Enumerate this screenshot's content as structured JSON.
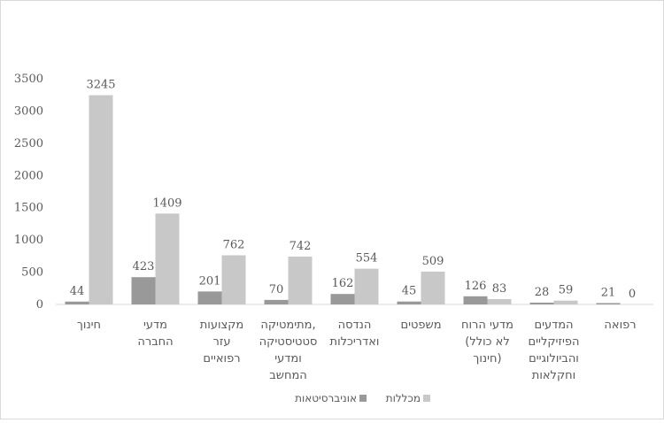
{
  "chart_data": {
    "type": "bar",
    "categories": [
      [
        "חינוך"
      ],
      [
        "מדעי",
        "החברה"
      ],
      [
        "מקצועות",
        "עזר",
        "רפואיים"
      ],
      [
        "מתימטיקה,",
        "סטטיסטיקה",
        "ומדעי",
        "המחשב"
      ],
      [
        "הנדסה",
        "ואדריכלות"
      ],
      [
        "משפטים"
      ],
      [
        "מדעי הרוח",
        "(לא כולל",
        "חינוך)"
      ],
      [
        "המדעים",
        "הפיזיקליים",
        "והביולוגיים",
        "וחקלאות"
      ],
      [
        "רפואה"
      ]
    ],
    "series": [
      {
        "name": "אוניברסיטאות",
        "color": "#999999",
        "values": [
          44,
          423,
          201,
          70,
          162,
          45,
          126,
          28,
          21
        ]
      },
      {
        "name": "מכללות",
        "color": "#c8c8c8",
        "values": [
          3245,
          1409,
          762,
          742,
          554,
          509,
          83,
          59,
          0
        ]
      }
    ],
    "ylim": [
      0,
      3500
    ],
    "yticks": [
      0,
      500,
      1000,
      1500,
      2000,
      2500,
      3000,
      3500
    ],
    "grid": false,
    "legend": "bottom"
  }
}
